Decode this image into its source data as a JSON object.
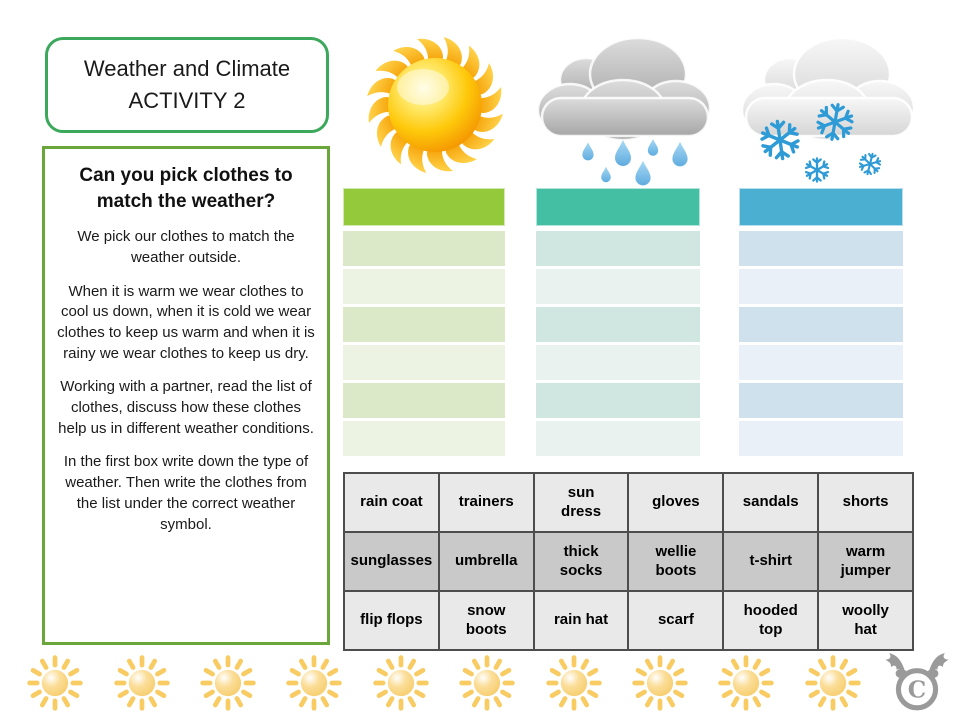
{
  "title_box": {
    "line1": "Weather and Climate",
    "line2": "ACTIVITY 2"
  },
  "instructions": {
    "heading": "Can you pick clothes to match the weather?",
    "paragraphs": [
      "We pick our clothes to match the weather outside.",
      "When it is warm we wear clothes to cool us down, when it is cold we wear clothes to keep us warm and when it is rainy we wear clothes to keep us dry.",
      "Working with a partner, read the list of clothes, discuss how these clothes help us in different weather conditions.",
      "In the first box write down the type of weather. Then write the clothes from the list under the correct weather symbol."
    ]
  },
  "weather_columns": [
    {
      "id": "sunny",
      "icon": "sun-icon",
      "header_color": "#95C93C",
      "row_color_dark": "#DBE9C9",
      "row_color_light": "#EDF3E3",
      "row_count": 6
    },
    {
      "id": "rainy",
      "icon": "rain-cloud-icon",
      "header_color": "#44BFA3",
      "row_color_dark": "#CFE7E0",
      "row_color_light": "#E9F2EE",
      "row_count": 6
    },
    {
      "id": "snowy",
      "icon": "snow-cloud-icon",
      "header_color": "#4BAFD1",
      "row_color_dark": "#CFE1EC",
      "row_color_light": "#E9F0F8",
      "row_count": 6
    }
  ],
  "clothes_table": {
    "rows": [
      [
        "rain coat",
        "trainers",
        "sun\ndress",
        "gloves",
        "sandals",
        "shorts"
      ],
      [
        "sunglasses",
        "umbrella",
        "thick\nsocks",
        "wellie\nboots",
        "t-shirt",
        "warm\njumper"
      ],
      [
        "flip flops",
        "snow\nboots",
        "rain hat",
        "scarf",
        "hooded\ntop",
        "woolly\nhat"
      ]
    ],
    "row_colors": [
      "#E9E9E9",
      "#C9C9C9",
      "#E9E9E9"
    ],
    "border_color": "#4D4D4D"
  },
  "footer": {
    "sun_count": 10
  },
  "branding": {
    "logo": "copyright-moose"
  }
}
